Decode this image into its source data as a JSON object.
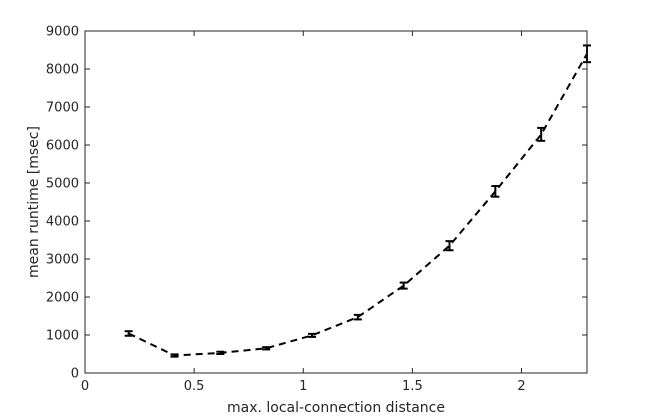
{
  "chart_data": {
    "type": "line",
    "title": "",
    "xlabel": "max. local-connection distance",
    "ylabel": "mean runtime [msec]",
    "xlim": [
      0,
      2.3
    ],
    "ylim": [
      0,
      9000
    ],
    "xticks": [
      0,
      0.5,
      1,
      1.5,
      2
    ],
    "xtick_labels": [
      "0",
      "0.5",
      "1",
      "1.5",
      "2"
    ],
    "yticks": [
      0,
      1000,
      2000,
      3000,
      4000,
      5000,
      6000,
      7000,
      8000,
      9000
    ],
    "ytick_labels": [
      "0",
      "1000",
      "2000",
      "3000",
      "4000",
      "5000",
      "6000",
      "7000",
      "8000",
      "9000"
    ],
    "grid": false,
    "line_style": "dashed",
    "line_color": "#000000",
    "series": [
      {
        "x": [
          0.2,
          0.41,
          0.62,
          0.83,
          1.04,
          1.25,
          1.46,
          1.67,
          1.88,
          2.09,
          2.3
        ],
        "y": [
          1040,
          460,
          530,
          650,
          990,
          1470,
          2300,
          3350,
          4780,
          6280,
          8400
        ],
        "error": [
          60,
          30,
          30,
          30,
          40,
          60,
          80,
          120,
          140,
          170,
          220
        ]
      }
    ]
  }
}
